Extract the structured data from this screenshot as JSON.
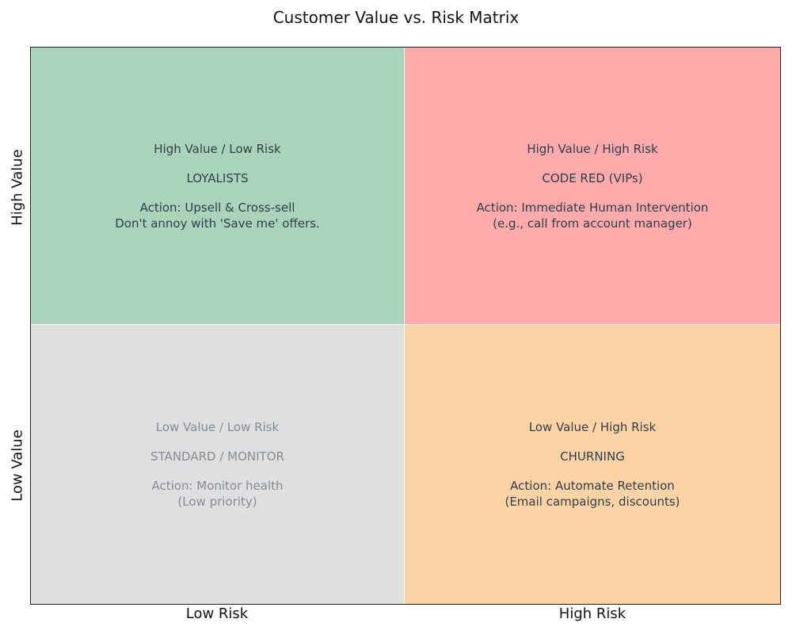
{
  "title": "Customer Value vs. Risk Matrix",
  "axes": {
    "y_top": "High Value",
    "y_bottom": "Low Value",
    "x_left": "Low Risk",
    "x_right": "High Risk"
  },
  "colors": {
    "high_value_low_risk": "#aad4b9",
    "high_value_high_risk": "#ffaaab",
    "low_value_low_risk": "#dfdfdf",
    "low_value_high_risk": "#fed4a6"
  },
  "quadrants": {
    "top_left": {
      "heading": "High Value / Low Risk",
      "segment": "LOYALISTS",
      "action": "Action: Upsell & Cross-sell",
      "note": "Don't annoy with 'Save me' offers."
    },
    "top_right": {
      "heading": "High Value / High Risk",
      "segment": "CODE RED (VIPs)",
      "action": "Action: Immediate Human Intervention",
      "note": "(e.g., call from account manager)"
    },
    "bottom_left": {
      "heading": "Low Value / Low Risk",
      "segment": "STANDARD / MONITOR",
      "action": "Action: Monitor health",
      "note": "(Low priority)"
    },
    "bottom_right": {
      "heading": "Low Value / High Risk",
      "segment": "CHURNING",
      "action": "Action: Automate Retention",
      "note": "(Email campaigns, discounts)"
    }
  }
}
